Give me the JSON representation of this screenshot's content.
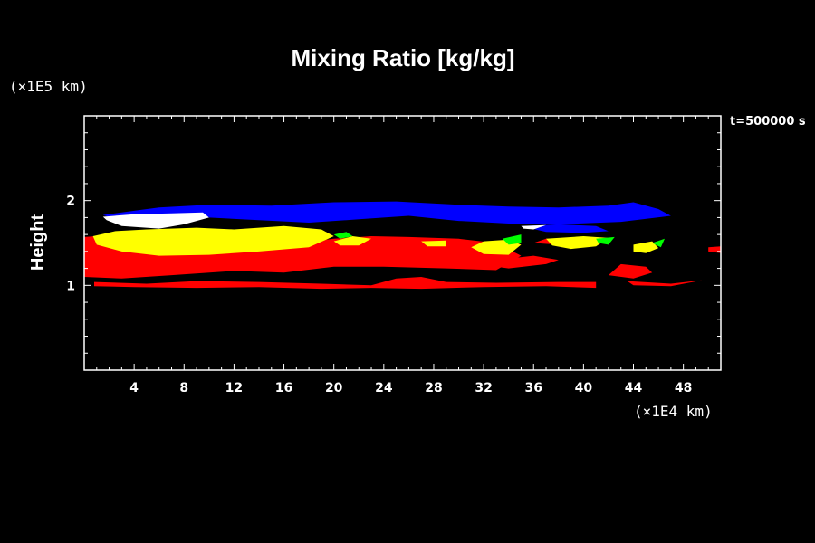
{
  "chart_data": {
    "type": "area",
    "title": "Mixing Ratio [kg/kg]",
    "xlabel": "",
    "ylabel": "Height",
    "x_unit": "(×1E4 km)",
    "y_unit": "(×1E5 km)",
    "time_label": "t=500000 s",
    "xlim": [
      0,
      51
    ],
    "ylim": [
      0,
      3
    ],
    "x_ticks": [
      4,
      8,
      12,
      16,
      20,
      24,
      28,
      32,
      36,
      40,
      44,
      48
    ],
    "y_ticks": [
      1,
      2
    ],
    "grid": false,
    "legend": "none",
    "colors": {
      "blue": "#0000ff",
      "white": "#ffffff",
      "yellow": "#ffff00",
      "green": "#00ff00",
      "red": "#ff0000",
      "background": "#000000",
      "axis": "#ffffff"
    },
    "regions": [
      {
        "color": "red",
        "polygon": [
          [
            0,
            1.57
          ],
          [
            3,
            1.6
          ],
          [
            6,
            1.55
          ],
          [
            8,
            1.5
          ],
          [
            12,
            1.52
          ],
          [
            16,
            1.48
          ],
          [
            20,
            1.55
          ],
          [
            23,
            1.58
          ],
          [
            26,
            1.57
          ],
          [
            30,
            1.55
          ],
          [
            33,
            1.5
          ],
          [
            35,
            1.35
          ],
          [
            33,
            1.18
          ],
          [
            29,
            1.2
          ],
          [
            24,
            1.22
          ],
          [
            20,
            1.22
          ],
          [
            16,
            1.15
          ],
          [
            12,
            1.17
          ],
          [
            7,
            1.12
          ],
          [
            3,
            1.08
          ],
          [
            0,
            1.1
          ]
        ]
      },
      {
        "color": "red",
        "polygon": [
          [
            0.8,
            1.04
          ],
          [
            5,
            1.02
          ],
          [
            9,
            1.05
          ],
          [
            14,
            1.04
          ],
          [
            19,
            1.02
          ],
          [
            23,
            1.0
          ],
          [
            25,
            1.08
          ],
          [
            27,
            1.1
          ],
          [
            29,
            1.04
          ],
          [
            33,
            1.03
          ],
          [
            38,
            1.04
          ],
          [
            41,
            1.04
          ],
          [
            41,
            0.97
          ],
          [
            37,
            0.99
          ],
          [
            32,
            0.98
          ],
          [
            27,
            0.96
          ],
          [
            23,
            0.97
          ],
          [
            19,
            0.96
          ],
          [
            14,
            0.98
          ],
          [
            9,
            0.97
          ],
          [
            4,
            0.98
          ],
          [
            0.8,
            0.99
          ]
        ]
      },
      {
        "color": "red",
        "polygon": [
          [
            34,
            1.2
          ],
          [
            37,
            1.25
          ],
          [
            38,
            1.3
          ],
          [
            36,
            1.35
          ],
          [
            33,
            1.3
          ],
          [
            33,
            1.22
          ]
        ]
      },
      {
        "color": "red",
        "polygon": [
          [
            36,
            1.5
          ],
          [
            38,
            1.48
          ],
          [
            40,
            1.52
          ],
          [
            39,
            1.56
          ],
          [
            37,
            1.55
          ]
        ]
      },
      {
        "color": "red",
        "polygon": [
          [
            43,
            1.25
          ],
          [
            45,
            1.22
          ],
          [
            45.5,
            1.15
          ],
          [
            44,
            1.08
          ],
          [
            42,
            1.12
          ]
        ]
      },
      {
        "color": "red",
        "polygon": [
          [
            43.5,
            1.05
          ],
          [
            47,
            1.02
          ],
          [
            49.5,
            1.06
          ],
          [
            47,
            0.99
          ],
          [
            44,
            1.0
          ]
        ]
      },
      {
        "color": "red",
        "polygon": [
          [
            50,
            1.45
          ],
          [
            51,
            1.46
          ],
          [
            51,
            1.38
          ],
          [
            50,
            1.4
          ]
        ]
      },
      {
        "color": "yellow",
        "polygon": [
          [
            0.7,
            1.58
          ],
          [
            2.5,
            1.64
          ],
          [
            5,
            1.66
          ],
          [
            9,
            1.68
          ],
          [
            12,
            1.66
          ],
          [
            16,
            1.7
          ],
          [
            19,
            1.66
          ],
          [
            20,
            1.58
          ],
          [
            18,
            1.45
          ],
          [
            14,
            1.4
          ],
          [
            10,
            1.36
          ],
          [
            6,
            1.35
          ],
          [
            3,
            1.4
          ],
          [
            1,
            1.48
          ]
        ]
      },
      {
        "color": "yellow",
        "polygon": [
          [
            20,
            1.52
          ],
          [
            21.5,
            1.58
          ],
          [
            23,
            1.55
          ],
          [
            22,
            1.47
          ],
          [
            20.5,
            1.47
          ]
        ]
      },
      {
        "color": "yellow",
        "polygon": [
          [
            27,
            1.52
          ],
          [
            29,
            1.53
          ],
          [
            29,
            1.46
          ],
          [
            27.5,
            1.46
          ]
        ]
      },
      {
        "color": "yellow",
        "polygon": [
          [
            31,
            1.45
          ],
          [
            32,
            1.52
          ],
          [
            34,
            1.54
          ],
          [
            35,
            1.48
          ],
          [
            34,
            1.36
          ],
          [
            32,
            1.37
          ]
        ]
      },
      {
        "color": "yellow",
        "polygon": [
          [
            37,
            1.55
          ],
          [
            40,
            1.58
          ],
          [
            42,
            1.56
          ],
          [
            41,
            1.46
          ],
          [
            39,
            1.43
          ],
          [
            37.5,
            1.47
          ]
        ]
      },
      {
        "color": "yellow",
        "polygon": [
          [
            44,
            1.48
          ],
          [
            45.5,
            1.52
          ],
          [
            46,
            1.44
          ],
          [
            45,
            1.38
          ],
          [
            44,
            1.4
          ]
        ]
      },
      {
        "color": "green",
        "polygon": [
          [
            20,
            1.6
          ],
          [
            21,
            1.63
          ],
          [
            21.5,
            1.58
          ],
          [
            20.5,
            1.55
          ]
        ]
      },
      {
        "color": "green",
        "polygon": [
          [
            33.5,
            1.55
          ],
          [
            35,
            1.6
          ],
          [
            35,
            1.5
          ],
          [
            34,
            1.48
          ]
        ]
      },
      {
        "color": "green",
        "polygon": [
          [
            41,
            1.55
          ],
          [
            42.5,
            1.57
          ],
          [
            42,
            1.48
          ],
          [
            41.2,
            1.5
          ]
        ]
      },
      {
        "color": "green",
        "polygon": [
          [
            45.5,
            1.5
          ],
          [
            46.5,
            1.55
          ],
          [
            46.2,
            1.45
          ]
        ]
      },
      {
        "color": "blue",
        "polygon": [
          [
            1.5,
            1.83
          ],
          [
            4,
            1.88
          ],
          [
            6,
            1.92
          ],
          [
            10,
            1.95
          ],
          [
            15,
            1.94
          ],
          [
            20,
            1.98
          ],
          [
            25,
            1.99
          ],
          [
            30,
            1.95
          ],
          [
            34,
            1.93
          ],
          [
            38,
            1.92
          ],
          [
            42,
            1.94
          ],
          [
            44,
            1.98
          ],
          [
            46,
            1.9
          ],
          [
            47,
            1.82
          ],
          [
            43,
            1.75
          ],
          [
            38,
            1.72
          ],
          [
            34,
            1.73
          ],
          [
            30,
            1.76
          ],
          [
            26,
            1.82
          ],
          [
            22,
            1.78
          ],
          [
            18,
            1.74
          ],
          [
            14,
            1.77
          ],
          [
            10,
            1.8
          ],
          [
            6,
            1.74
          ],
          [
            3,
            1.76
          ]
        ]
      },
      {
        "color": "blue",
        "polygon": [
          [
            35,
            1.7
          ],
          [
            38,
            1.72
          ],
          [
            41,
            1.7
          ],
          [
            42,
            1.64
          ],
          [
            40,
            1.62
          ],
          [
            37,
            1.63
          ]
        ]
      },
      {
        "color": "white",
        "polygon": [
          [
            1.5,
            1.81
          ],
          [
            4,
            1.84
          ],
          [
            7,
            1.85
          ],
          [
            9.5,
            1.86
          ],
          [
            10,
            1.8
          ],
          [
            8,
            1.72
          ],
          [
            6,
            1.67
          ],
          [
            3,
            1.7
          ],
          [
            1.8,
            1.77
          ]
        ]
      },
      {
        "color": "white",
        "polygon": [
          [
            35,
            1.7
          ],
          [
            37,
            1.71
          ],
          [
            36,
            1.66
          ],
          [
            35.2,
            1.67
          ]
        ]
      }
    ]
  }
}
